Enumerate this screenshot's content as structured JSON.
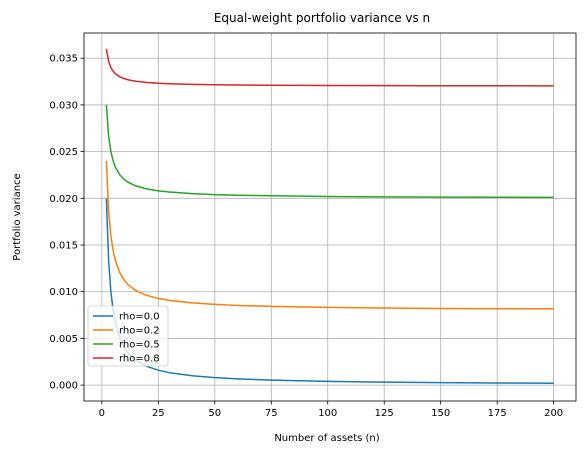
{
  "chart_data": {
    "type": "line",
    "title": "Equal-weight portfolio variance vs n",
    "xlabel": "Number of assets (n)",
    "ylabel": "Portfolio variance",
    "xlim": [
      -7.9,
      209.9
    ],
    "ylim": [
      -0.0017,
      0.0377
    ],
    "xticks": [
      0,
      25,
      50,
      75,
      100,
      125,
      150,
      175,
      200
    ],
    "xtick_labels": [
      "0",
      "25",
      "50",
      "75",
      "100",
      "125",
      "150",
      "175",
      "200"
    ],
    "yticks": [
      0.0,
      0.005,
      0.01,
      0.015,
      0.02,
      0.025,
      0.03,
      0.035
    ],
    "ytick_labels": [
      "0.000",
      "0.005",
      "0.010",
      "0.015",
      "0.020",
      "0.025",
      "0.030",
      "0.035"
    ],
    "grid": true,
    "legend_position": "lower-left",
    "x": [
      2,
      3,
      4,
      5,
      6,
      8,
      10,
      12,
      15,
      20,
      25,
      30,
      40,
      50,
      60,
      75,
      100,
      125,
      150,
      175,
      200
    ],
    "series": [
      {
        "name": "rho=0.0",
        "color": "#1f77b4",
        "values": [
          0.02,
          0.01333,
          0.01,
          0.008,
          0.00667,
          0.005,
          0.004,
          0.00333,
          0.00267,
          0.002,
          0.0016,
          0.00133,
          0.001,
          0.0008,
          0.00067,
          0.00053,
          0.0004,
          0.00032,
          0.00027,
          0.00023,
          0.0002
        ]
      },
      {
        "name": "rho=0.2",
        "color": "#ff7f0e",
        "values": [
          0.024,
          0.01867,
          0.016,
          0.0144,
          0.01333,
          0.012,
          0.0112,
          0.01067,
          0.01013,
          0.0096,
          0.00928,
          0.00907,
          0.0088,
          0.00864,
          0.00853,
          0.00843,
          0.00832,
          0.00826,
          0.00821,
          0.00818,
          0.00816
        ]
      },
      {
        "name": "rho=0.5",
        "color": "#2ca02c",
        "values": [
          0.03,
          0.02667,
          0.025,
          0.024,
          0.02333,
          0.0225,
          0.022,
          0.02167,
          0.02133,
          0.021,
          0.0208,
          0.02067,
          0.0205,
          0.0204,
          0.02033,
          0.02027,
          0.0202,
          0.02016,
          0.02013,
          0.02011,
          0.0201
        ]
      },
      {
        "name": "rho=0.8",
        "color": "#d62728",
        "values": [
          0.036,
          0.03467,
          0.034,
          0.0336,
          0.03333,
          0.033,
          0.0328,
          0.03267,
          0.03253,
          0.0324,
          0.03232,
          0.03227,
          0.0322,
          0.03216,
          0.03213,
          0.03211,
          0.03208,
          0.03206,
          0.03205,
          0.03205,
          0.03204
        ]
      }
    ]
  }
}
